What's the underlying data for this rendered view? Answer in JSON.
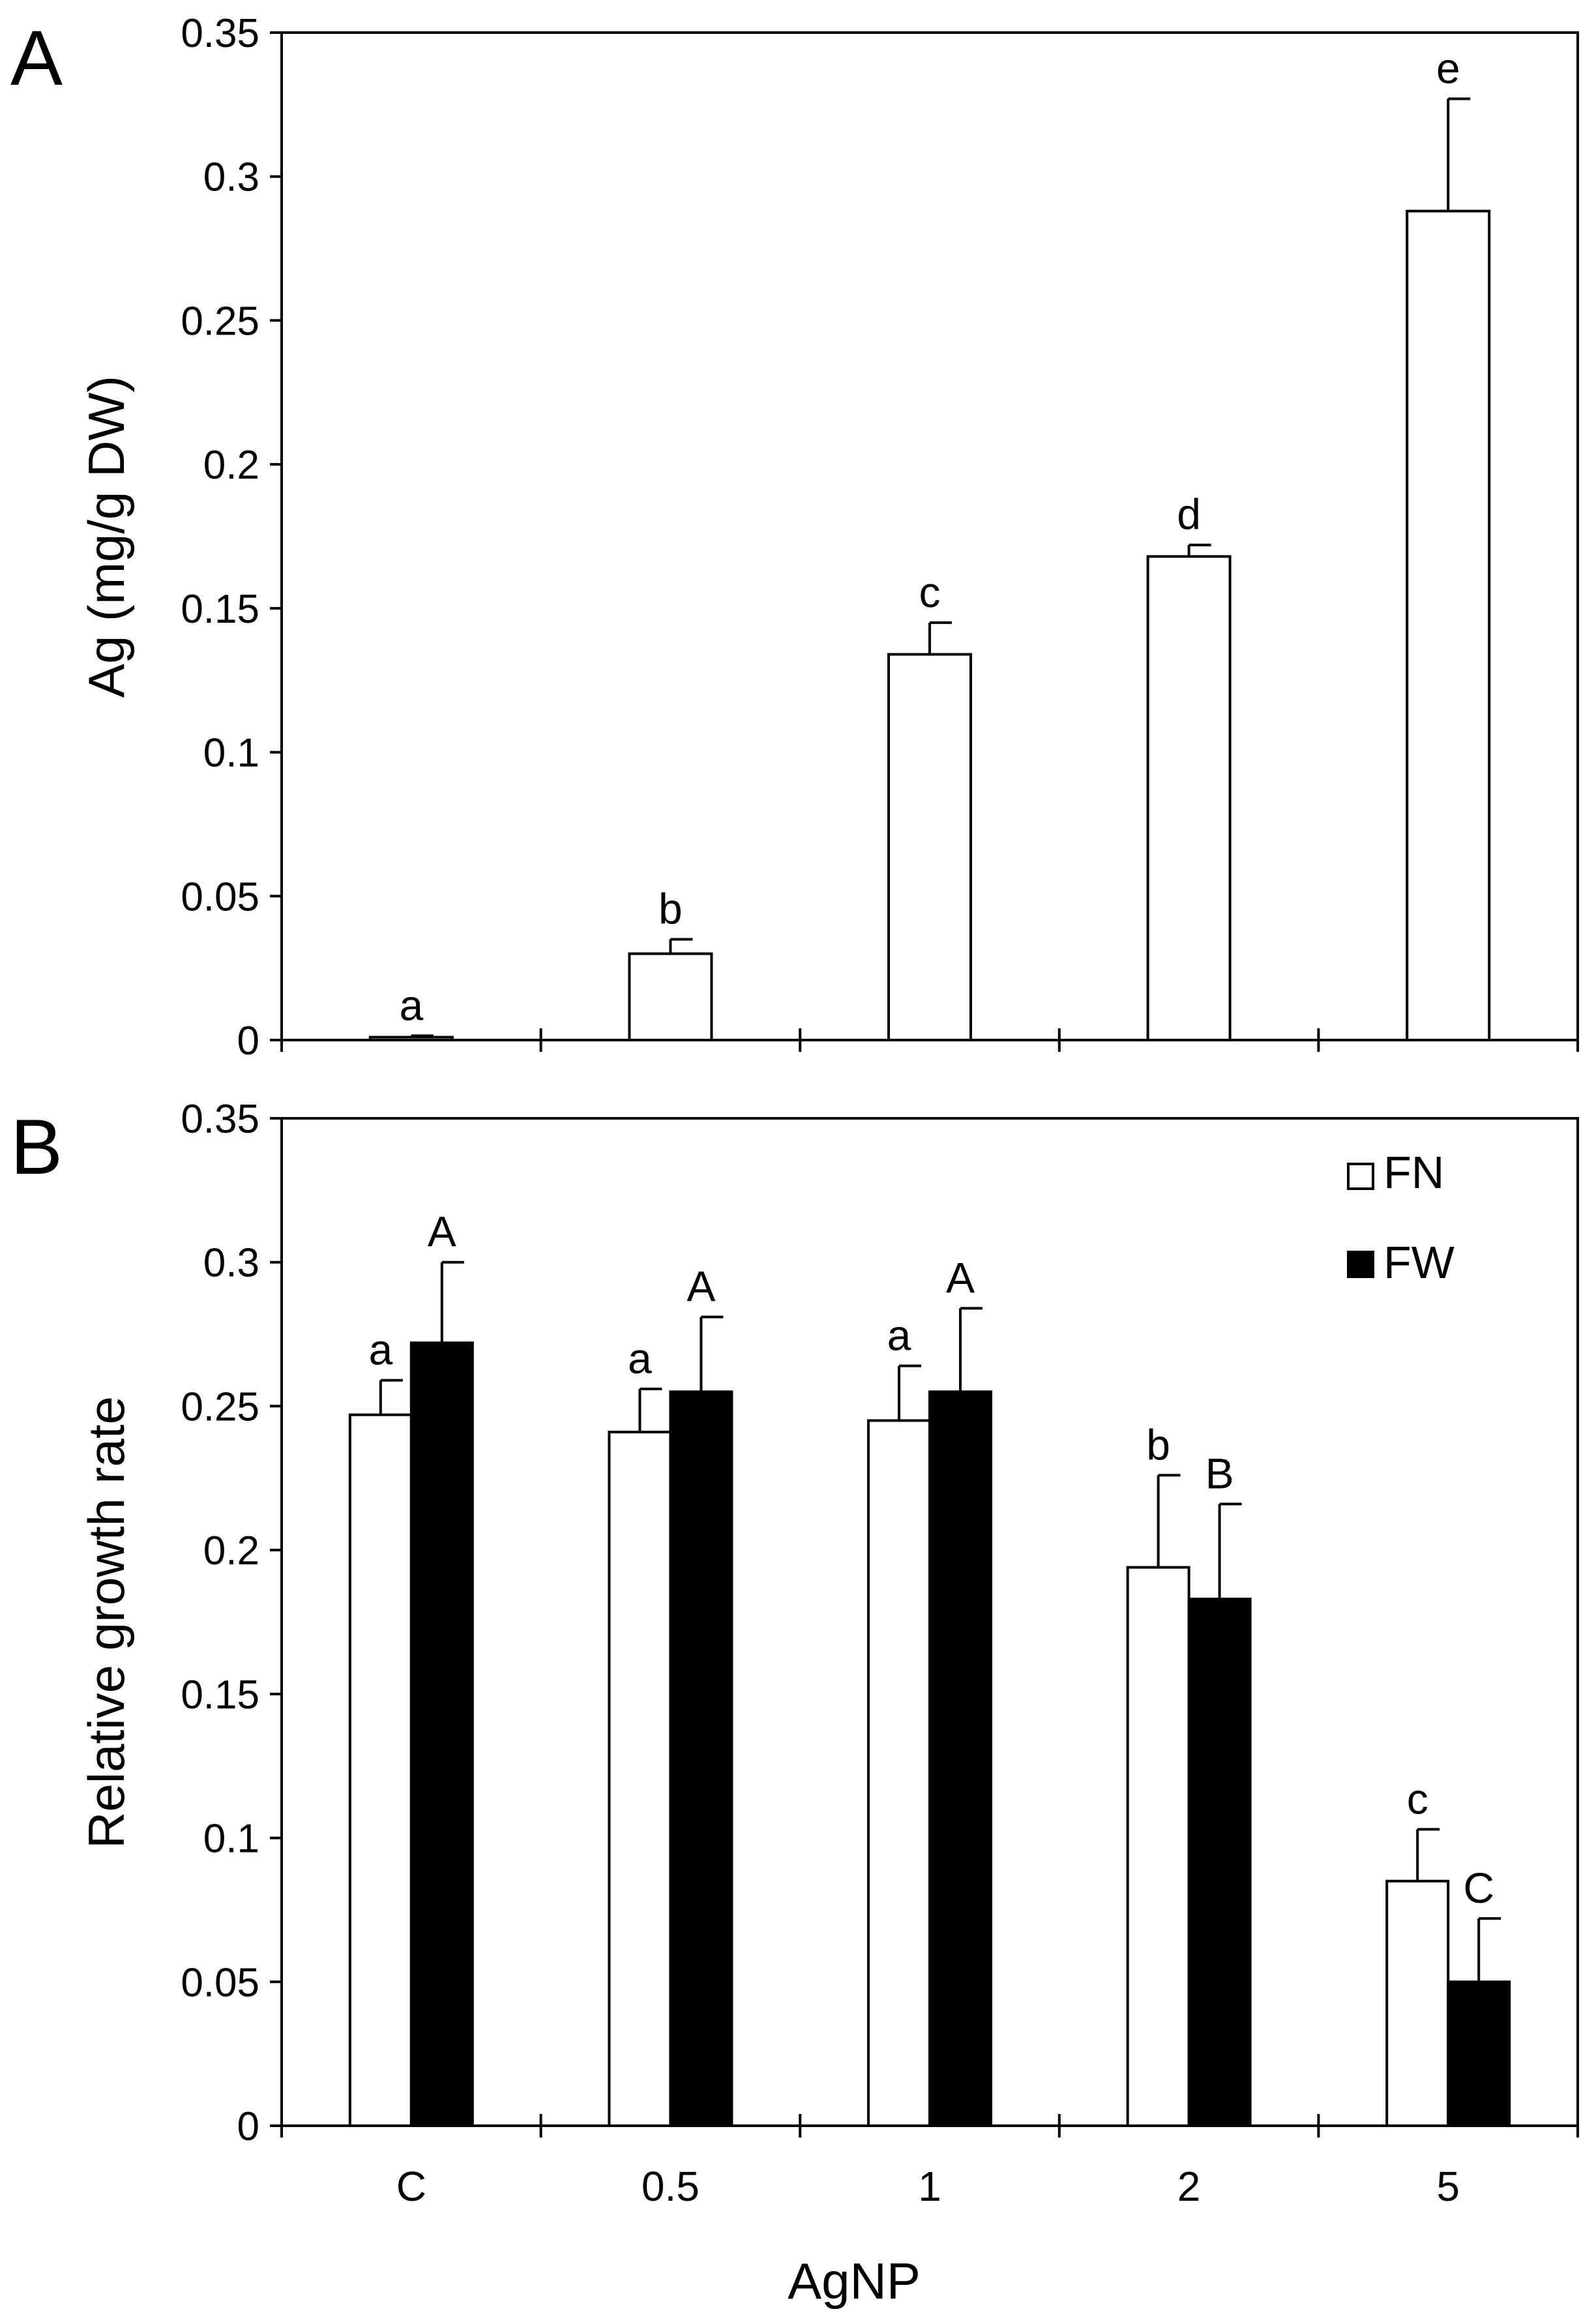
{
  "panels": [
    {
      "id": "A",
      "letter": "A",
      "ylabel": "Ag (mg/g DW)",
      "yticks": [
        "0",
        "0.05",
        "0.1",
        "0.15",
        "0.2",
        "0.25",
        "0.3",
        "0.35"
      ]
    },
    {
      "id": "B",
      "letter": "B",
      "ylabel": "Relative growth rate",
      "xlabel": "AgNP",
      "yticks": [
        "0",
        "0.05",
        "0.1",
        "0.15",
        "0.2",
        "0.25",
        "0.3",
        "0.35"
      ],
      "legend": [
        "FN",
        "FW"
      ]
    }
  ],
  "chart_data": [
    {
      "type": "bar",
      "panel": "A",
      "title": "",
      "xlabel": "",
      "ylabel": "Ag (mg/g DW)",
      "ylim": [
        0,
        0.35
      ],
      "categories": [
        "C",
        "0.5",
        "1",
        "2",
        "5"
      ],
      "series": [
        {
          "name": "Ag",
          "color": "#ffffff",
          "values": [
            0.001,
            0.03,
            0.134,
            0.168,
            0.288
          ],
          "errors": [
            0.0005,
            0.005,
            0.011,
            0.004,
            0.039
          ],
          "letters": [
            "a",
            "b",
            "c",
            "d",
            "e"
          ]
        }
      ],
      "grid": false
    },
    {
      "type": "bar",
      "panel": "B",
      "title": "",
      "xlabel": "AgNP",
      "ylabel": "Relative growth rate",
      "ylim": [
        0,
        0.35
      ],
      "categories": [
        "C",
        "0.5",
        "1",
        "2",
        "5"
      ],
      "legend_position": "top-right",
      "series": [
        {
          "name": "FN",
          "color": "#ffffff",
          "values": [
            0.247,
            0.241,
            0.245,
            0.194,
            0.085
          ],
          "errors": [
            0.012,
            0.015,
            0.019,
            0.032,
            0.018
          ],
          "letters": [
            "a",
            "a",
            "a",
            "b",
            "c"
          ]
        },
        {
          "name": "FW",
          "color": "#000000",
          "values": [
            0.272,
            0.255,
            0.255,
            0.183,
            0.05
          ],
          "errors": [
            0.028,
            0.026,
            0.029,
            0.033,
            0.022
          ],
          "letters": [
            "A",
            "A",
            "A",
            "B",
            "C"
          ]
        }
      ],
      "grid": false
    }
  ]
}
